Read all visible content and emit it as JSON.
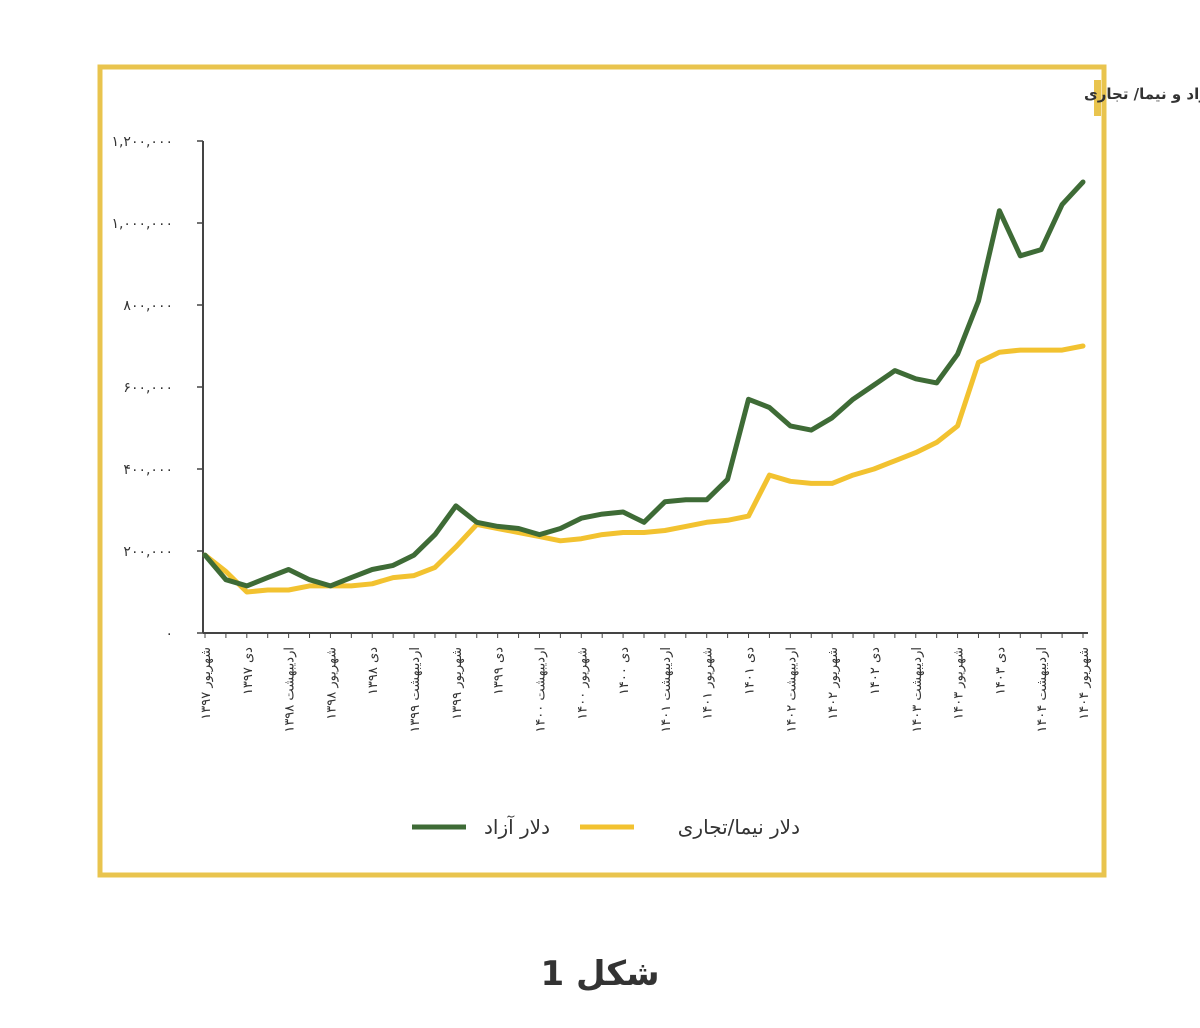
{
  "chart_data": {
    "type": "line",
    "title": "درصد اختلاف دلار آزاد و نیما/ تجاری",
    "caption": "شکل 1",
    "categories": [
      "شهریور ۱۳۹۷",
      null,
      "دی ۱۳۹۷",
      null,
      "اردیبهشت ۱۳۹۸",
      null,
      "شهریور ۱۳۹۸",
      null,
      "دی ۱۳۹۸",
      null,
      "اردیبهشت ۱۳۹۹",
      null,
      "شهریور ۱۳۹۹",
      null,
      "دی ۱۳۹۹",
      null,
      "اردیبهشت ۱۴۰۰",
      null,
      "شهریور ۱۴۰۰",
      null,
      "دی ۱۴۰۰",
      null,
      "اردیبهشت ۱۴۰۱",
      null,
      "شهریور ۱۴۰۱",
      null,
      "دی ۱۴۰۱",
      null,
      "اردیبهشت ۱۴۰۲",
      null,
      "شهریور ۱۴۰۲",
      null,
      "دی ۱۴۰۲",
      null,
      "اردیبهشت ۱۴۰۳",
      null,
      "شهریور ۱۴۰۳",
      null,
      "دی ۱۴۰۳",
      null,
      "اردیبهشت ۱۴۰۴",
      null,
      "شهریور ۱۴۰۴"
    ],
    "series": [
      {
        "name": "دلار آزاد",
        "color": "#3e6b36",
        "values": [
          190000,
          130000,
          115000,
          135000,
          155000,
          130000,
          115000,
          135000,
          155000,
          165000,
          190000,
          240000,
          310000,
          270000,
          260000,
          255000,
          240000,
          255000,
          280000,
          290000,
          295000,
          270000,
          320000,
          325000,
          325000,
          375000,
          570000,
          550000,
          505000,
          495000,
          525000,
          570000,
          605000,
          640000,
          620000,
          610000,
          680000,
          810000,
          1030000,
          920000,
          935000,
          1045000,
          1100000
        ]
      },
      {
        "name": "دلار نیما/تجاری",
        "color": "#f2c230",
        "values": [
          190000,
          150000,
          100000,
          105000,
          105000,
          115000,
          115000,
          115000,
          120000,
          135000,
          140000,
          160000,
          210000,
          265000,
          255000,
          245000,
          235000,
          225000,
          230000,
          240000,
          245000,
          245000,
          250000,
          260000,
          270000,
          275000,
          285000,
          385000,
          370000,
          365000,
          365000,
          385000,
          400000,
          420000,
          440000,
          465000,
          505000,
          660000,
          685000,
          690000,
          690000,
          690000,
          700000
        ]
      }
    ],
    "ylim": [
      0,
      1200000
    ],
    "yticks": [
      {
        "value": 0,
        "label": "۰"
      },
      {
        "value": 200000,
        "label": "۲۰۰,۰۰۰"
      },
      {
        "value": 400000,
        "label": "۴۰۰,۰۰۰"
      },
      {
        "value": 600000,
        "label": "۶۰۰,۰۰۰"
      },
      {
        "value": 800000,
        "label": "۸۰۰,۰۰۰"
      },
      {
        "value": 1000000,
        "label": "۱,۰۰۰,۰۰۰"
      },
      {
        "value": 1200000,
        "label": "۱,۲۰۰,۰۰۰"
      }
    ],
    "grid": false
  }
}
